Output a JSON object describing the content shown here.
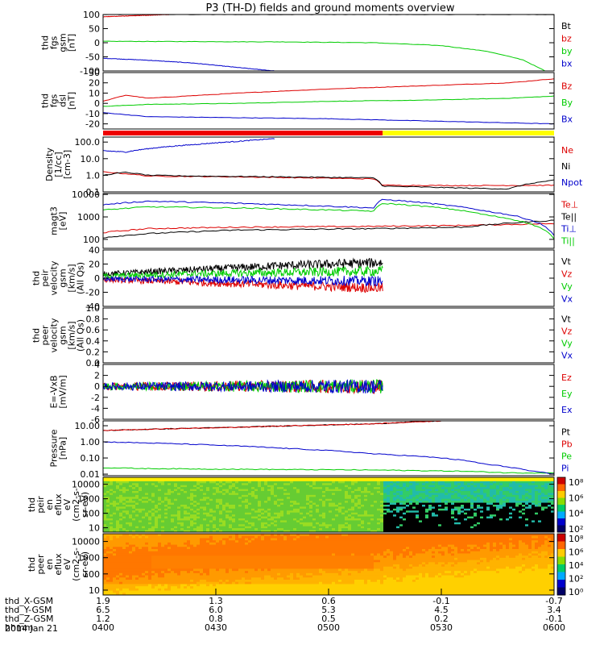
{
  "title": "P3 (TH-D) fields and ground moments overview",
  "date": "2014 Jan 21",
  "chart_data": [
    {
      "type": "line",
      "name": "fgs_gsm",
      "ylabel": [
        "thd",
        "fgs",
        "gsm",
        "[nT]"
      ],
      "ylim": [
        -100,
        100
      ],
      "ticks": [
        "100",
        "50",
        "0",
        "-50",
        "-100"
      ],
      "tick_values": [
        100,
        50,
        0,
        -50,
        -100
      ],
      "series": [
        {
          "name": "Bt",
          "color": "#000000",
          "x": [
            0.0,
            1.0
          ],
          "values": [
            100,
            100
          ]
        },
        {
          "name": "bz",
          "color": "#dd0000",
          "x": [
            0.0,
            0.15
          ],
          "values": [
            92,
            100
          ]
        },
        {
          "name": "by",
          "color": "#00cc00",
          "x": [
            0.0,
            0.2,
            0.4,
            0.6,
            0.75,
            0.85,
            0.93,
            0.98
          ],
          "values": [
            5,
            4,
            3,
            0,
            -10,
            -30,
            -60,
            -100
          ]
        },
        {
          "name": "bx",
          "color": "#0000cc",
          "x": [
            0.0,
            0.1,
            0.2,
            0.3,
            0.38
          ],
          "values": [
            -55,
            -62,
            -72,
            -88,
            -100
          ]
        }
      ],
      "legend": [
        "Bt",
        "bz",
        "by",
        "bx"
      ]
    },
    {
      "type": "line",
      "name": "fgs_dsl",
      "ylabel": [
        "thd",
        "fgs",
        "dsl",
        "[nT]"
      ],
      "ylim": [
        -25,
        30
      ],
      "ticks": [
        "30",
        "20",
        "10",
        "0",
        "-10",
        "-20"
      ],
      "tick_values": [
        30,
        20,
        10,
        0,
        -10,
        -20
      ],
      "series": [
        {
          "name": "Bz",
          "color": "#dd0000",
          "x": [
            0.0,
            0.05,
            0.1,
            0.3,
            0.5,
            0.7,
            0.9,
            1.0
          ],
          "values": [
            2,
            8,
            5,
            10,
            14,
            17,
            20,
            24
          ]
        },
        {
          "name": "By",
          "color": "#00cc00",
          "x": [
            0.0,
            0.1,
            0.3,
            0.5,
            0.7,
            0.9,
            1.0
          ],
          "values": [
            -3,
            -1,
            0,
            2,
            3,
            5,
            7
          ]
        },
        {
          "name": "Bx",
          "color": "#0000cc",
          "x": [
            0.0,
            0.1,
            0.3,
            0.5,
            0.7,
            0.9,
            1.0
          ],
          "values": [
            -9,
            -13,
            -14,
            -15,
            -17,
            -19,
            -20
          ]
        }
      ],
      "legend": [
        "Bz",
        "By",
        "Bx"
      ]
    },
    {
      "type": "line",
      "name": "density",
      "yscale": "log",
      "ylabel": [
        "Density",
        "[1/cc]",
        "[cm-3]"
      ],
      "ylim": [
        0.1,
        200
      ],
      "ticks": [
        "100.0",
        "10.0",
        "1.0",
        "0.1"
      ],
      "tick_values": [
        100,
        10,
        1,
        0.1
      ],
      "series": [
        {
          "name": "Ne",
          "color": "#dd0000",
          "x": [
            0.0,
            0.1,
            0.3,
            0.6,
            0.62,
            0.8,
            1.0
          ],
          "values": [
            1.6,
            0.9,
            0.8,
            0.6,
            0.25,
            0.24,
            0.25
          ]
        },
        {
          "name": "Ni",
          "color": "#000000",
          "x": [
            0.0,
            0.05,
            0.1,
            0.2,
            0.4,
            0.6,
            0.62,
            0.8,
            0.9,
            1.0
          ],
          "values": [
            1.0,
            1.5,
            1.0,
            0.9,
            0.8,
            0.7,
            0.22,
            0.17,
            0.15,
            0.5
          ]
        },
        {
          "name": "Npot",
          "color": "#0000cc",
          "x": [
            0.0,
            0.05,
            0.1,
            0.2,
            0.3,
            0.38
          ],
          "values": [
            30,
            25,
            40,
            70,
            110,
            160
          ]
        }
      ],
      "legend": [
        "Ne",
        "Ni",
        "Npot"
      ]
    },
    {
      "type": "line",
      "name": "temperature",
      "yscale": "log",
      "ylabel": [
        "magt3",
        "[eV]"
      ],
      "ylim": [
        40,
        11000
      ],
      "ticks": [
        "10000",
        "1000",
        "100"
      ],
      "tick_values": [
        10000,
        1000,
        100
      ],
      "series": [
        {
          "name": "Te⊥",
          "color": "#dd0000",
          "x": [
            0.0,
            0.1,
            0.3,
            0.6,
            0.8,
            1.0
          ],
          "values": [
            200,
            300,
            350,
            380,
            420,
            500
          ]
        },
        {
          "name": "Te||",
          "color": "#000000",
          "x": [
            0.0,
            0.1,
            0.3,
            0.6,
            0.8,
            1.0
          ],
          "values": [
            120,
            180,
            260,
            300,
            350,
            700
          ]
        },
        {
          "name": "Ti⊥",
          "color": "#0000cc",
          "x": [
            0.0,
            0.1,
            0.3,
            0.6,
            0.62,
            0.75,
            0.85,
            1.0
          ],
          "values": [
            3500,
            5000,
            4000,
            2500,
            6000,
            3500,
            1800,
            150
          ]
        },
        {
          "name": "Ti||",
          "color": "#00cc00",
          "x": [
            0.0,
            0.1,
            0.3,
            0.6,
            0.62,
            0.75,
            0.85,
            1.0
          ],
          "values": [
            2000,
            2800,
            2500,
            1800,
            4000,
            2500,
            1200,
            100
          ]
        }
      ],
      "legend": [
        "Te⊥",
        "Te||",
        "Ti⊥",
        "Ti||"
      ]
    },
    {
      "type": "line",
      "name": "peir_velocity",
      "ylabel": [
        "thd",
        "peir",
        "velocity",
        "gsm",
        "[km/s]",
        "(All Qs)"
      ],
      "ylim": [
        -40,
        40
      ],
      "ticks": [
        "40",
        "20",
        "0",
        "-20",
        "-40"
      ],
      "tick_values": [
        40,
        20,
        0,
        -20,
        -40
      ],
      "series": [
        {
          "name": "Vt",
          "color": "#000000",
          "x": [
            0.0,
            0.2,
            0.4,
            0.62
          ],
          "values": [
            6,
            12,
            18,
            22
          ]
        },
        {
          "name": "Vz",
          "color": "#dd0000",
          "x": [
            0.0,
            0.2,
            0.4,
            0.62
          ],
          "values": [
            -2,
            -6,
            -10,
            -14
          ]
        },
        {
          "name": "Vy",
          "color": "#00cc00",
          "x": [
            0.0,
            0.2,
            0.4,
            0.62
          ],
          "values": [
            3,
            6,
            8,
            10
          ]
        },
        {
          "name": "Vx",
          "color": "#0000cc",
          "x": [
            0.0,
            0.2,
            0.4,
            0.62
          ],
          "values": [
            -1,
            -2,
            -3,
            -4
          ]
        }
      ],
      "x_end": 0.62,
      "legend": [
        "Vt",
        "Vz",
        "Vy",
        "Vx"
      ]
    },
    {
      "type": "line",
      "name": "peer_velocity",
      "ylabel": [
        "thd",
        "peer",
        "velocity",
        "gsm",
        "[km/s]",
        "(All Qs)"
      ],
      "ylim": [
        0,
        1
      ],
      "ticks": [
        "1.0",
        "0.8",
        "0.6",
        "0.4",
        "0.2",
        "0.0"
      ],
      "tick_values": [
        1.0,
        0.8,
        0.6,
        0.4,
        0.2,
        0.0
      ],
      "series": [],
      "legend": [
        "Vt",
        "Vz",
        "Vy",
        "Vx"
      ],
      "legend_colors": [
        "#000000",
        "#dd0000",
        "#00cc00",
        "#0000cc"
      ]
    },
    {
      "type": "line",
      "name": "e_field",
      "ylabel": [
        "E=-VxB",
        "[mV/m]"
      ],
      "ylim": [
        -6,
        4
      ],
      "ticks": [
        "4",
        "2",
        "0",
        "-2",
        "-4",
        "-6"
      ],
      "tick_values": [
        4,
        2,
        0,
        -2,
        -4,
        -6
      ],
      "series": [
        {
          "name": "Ez",
          "color": "#dd0000",
          "x": [
            0.0,
            0.3,
            0.62
          ],
          "values": [
            0,
            0,
            0
          ]
        },
        {
          "name": "Ey",
          "color": "#00cc00",
          "x": [
            0.0,
            0.3,
            0.62
          ],
          "values": [
            0,
            0,
            0
          ]
        },
        {
          "name": "Ex",
          "color": "#0000cc",
          "x": [
            0.0,
            0.3,
            0.62
          ],
          "values": [
            0,
            0,
            0
          ]
        }
      ],
      "x_end": 0.62,
      "legend": [
        "Ez",
        "Ey",
        "Ex"
      ]
    },
    {
      "type": "line",
      "name": "pressure",
      "yscale": "log",
      "ylabel": [
        "Pressure",
        "[nPa]"
      ],
      "ylim": [
        0.008,
        20
      ],
      "ticks": [
        "10.00",
        "1.00",
        "0.10",
        "0.01"
      ],
      "tick_values": [
        10,
        1,
        0.1,
        0.01
      ],
      "series": [
        {
          "name": "Pt",
          "color": "#000000",
          "x": [
            0.0,
            0.3,
            0.6,
            0.75
          ],
          "values": [
            5,
            8,
            13,
            20
          ]
        },
        {
          "name": "Pb",
          "color": "#dd0000",
          "x": [
            0.0,
            0.3,
            0.6,
            0.75
          ],
          "values": [
            5,
            8,
            13,
            20
          ]
        },
        {
          "name": "Pe",
          "color": "#00cc00",
          "x": [
            0.0,
            0.1,
            0.3,
            0.6,
            0.8,
            0.9,
            1.0
          ],
          "values": [
            0.025,
            0.022,
            0.02,
            0.018,
            0.015,
            0.012,
            0.012
          ]
        },
        {
          "name": "Pi",
          "color": "#0000cc",
          "x": [
            0.0,
            0.2,
            0.4,
            0.6,
            0.75,
            0.85,
            0.95,
            1.0
          ],
          "values": [
            1.0,
            0.7,
            0.4,
            0.18,
            0.1,
            0.04,
            0.015,
            0.01
          ]
        }
      ],
      "legend": [
        "Pt",
        "Pb",
        "Pe",
        "Pi"
      ]
    },
    {
      "type": "heatmap",
      "name": "peir_spectrogram",
      "yscale": "log",
      "ylabel": [
        "thd",
        "peir",
        "en",
        "eflux",
        "eV",
        "(cm2-s-",
        "sr-eV)"
      ],
      "ylim": [
        5,
        30000
      ],
      "ticks": [
        "10000",
        "1000",
        "100",
        "10"
      ],
      "tick_values": [
        10000,
        1000,
        100,
        10
      ],
      "colorbar_ticks": [
        "10⁸",
        "10⁶",
        "10⁴",
        "10²"
      ]
    },
    {
      "type": "heatmap",
      "name": "peer_spectrogram",
      "yscale": "log",
      "ylabel": [
        "thd",
        "peer",
        "en",
        "eflux",
        "eV",
        "(cm2-s-",
        "sr-eV)"
      ],
      "ylim": [
        5,
        30000
      ],
      "ticks": [
        "10000",
        "1000",
        "100",
        "10"
      ],
      "tick_values": [
        10000,
        1000,
        100,
        10
      ],
      "colorbar_ticks": [
        "10⁸",
        "10⁶",
        "10⁴",
        "10²",
        "10⁰"
      ]
    }
  ],
  "x_axis": {
    "row_labels": [
      "thd_X-GSM",
      "thd_Y-GSM",
      "thd_Z-GSM",
      "hhmm"
    ],
    "columns": [
      {
        "x": 0.0,
        "values": [
          "1.9",
          "6.5",
          "1.2",
          "0400"
        ]
      },
      {
        "x": 0.25,
        "values": [
          "1.3",
          "6.0",
          "0.8",
          "0430"
        ]
      },
      {
        "x": 0.5,
        "values": [
          "0.6",
          "5.3",
          "0.5",
          "0500"
        ]
      },
      {
        "x": 0.75,
        "values": [
          "-0.1",
          "4.5",
          "0.2",
          "0530"
        ]
      },
      {
        "x": 1.0,
        "values": [
          "-0.7",
          "3.4",
          "-0.1",
          "0600"
        ]
      }
    ]
  },
  "mode_bar": {
    "segments": [
      {
        "from": 0.0,
        "to": 0.62,
        "color": "#ee0000"
      },
      {
        "from": 0.62,
        "to": 1.0,
        "color": "#ffff00"
      }
    ]
  }
}
